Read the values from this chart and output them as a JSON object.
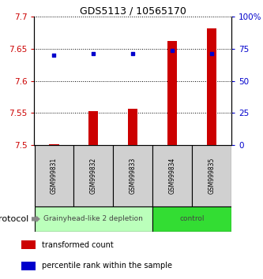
{
  "title": "GDS5113 / 10565170",
  "samples": [
    "GSM999831",
    "GSM999832",
    "GSM999833",
    "GSM999834",
    "GSM999835"
  ],
  "bar_values": [
    7.501,
    7.553,
    7.556,
    7.662,
    7.682
  ],
  "bar_bottom": 7.5,
  "percentile_values": [
    70,
    71,
    71,
    74,
    71
  ],
  "ylim_left": [
    7.5,
    7.7
  ],
  "ylim_right": [
    0,
    100
  ],
  "yticks_left": [
    7.5,
    7.55,
    7.6,
    7.65,
    7.7
  ],
  "ytick_labels_left": [
    "7.5",
    "7.55",
    "7.6",
    "7.65",
    "7.7"
  ],
  "yticks_right": [
    0,
    25,
    50,
    75,
    100
  ],
  "ytick_labels_right": [
    "0",
    "25",
    "50",
    "75",
    "100%"
  ],
  "bar_color": "#cc0000",
  "dot_color": "#0000cc",
  "bar_width": 0.25,
  "groups": [
    {
      "label": "Grainyhead-like 2 depletion",
      "start": 0,
      "end": 3,
      "color": "#bbffbb"
    },
    {
      "label": "control",
      "start": 3,
      "end": 5,
      "color": "#33dd33"
    }
  ],
  "protocol_label": "protocol",
  "legend_items": [
    {
      "color": "#cc0000",
      "label": "transformed count"
    },
    {
      "color": "#0000cc",
      "label": "percentile rank within the sample"
    }
  ],
  "background_color": "#ffffff",
  "tick_label_color_left": "#cc0000",
  "tick_label_color_right": "#0000cc",
  "sample_box_color": "#d0d0d0",
  "title_fontsize": 9,
  "tick_fontsize": 7.5,
  "sample_fontsize": 5.5,
  "legend_fontsize": 7,
  "group_fontsize": 6.5
}
